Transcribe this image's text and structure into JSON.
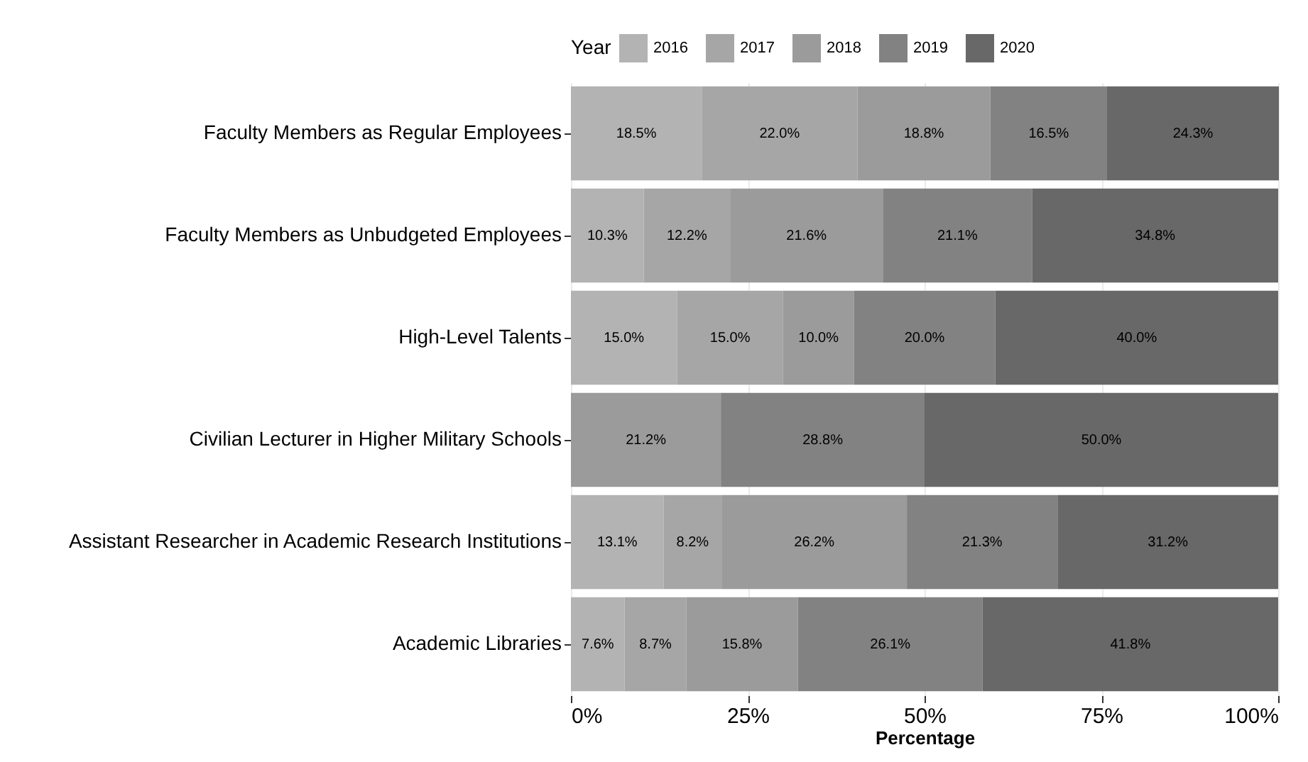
{
  "chart_data": {
    "type": "bar",
    "orientation": "horizontal",
    "stacked": true,
    "xlabel": "Percentage",
    "legend_title": "Year",
    "legend": "top",
    "grid": "x",
    "categories": [
      "Faculty Members as Regular Employees",
      "Faculty Members as Unbudgeted Employees",
      "High-Level Talents",
      "Civilian Lecturer in Higher Military Schools",
      "Assistant Researcher in Academic Research Institutions",
      "Academic Libraries"
    ],
    "xlim": [
      0,
      100
    ],
    "xticks": [
      {
        "value": 0,
        "label": "0%"
      },
      {
        "value": 25,
        "label": "25%"
      },
      {
        "value": 50,
        "label": "50%"
      },
      {
        "value": 75,
        "label": "75%"
      },
      {
        "value": 100,
        "label": "100%"
      }
    ],
    "series": [
      {
        "name": "2016",
        "color": "#b3b3b3",
        "values": [
          18.5,
          10.3,
          15.0,
          null,
          13.1,
          7.6
        ],
        "value_labels": [
          "18.5%",
          "10.3%",
          "15.0%",
          null,
          "13.1%",
          "7.6%"
        ]
      },
      {
        "name": "2017",
        "color": "#a6a6a6",
        "values": [
          22.0,
          12.2,
          15.0,
          null,
          8.2,
          8.7
        ],
        "value_labels": [
          "22.0%",
          "12.2%",
          "15.0%",
          null,
          "8.2%",
          "8.7%"
        ]
      },
      {
        "name": "2018",
        "color": "#9b9b9b",
        "values": [
          18.8,
          21.6,
          10.0,
          21.2,
          26.2,
          15.8
        ],
        "value_labels": [
          "18.8%",
          "21.6%",
          "10.0%",
          "21.2%",
          "26.2%",
          "15.8%"
        ]
      },
      {
        "name": "2019",
        "color": "#828282",
        "values": [
          16.5,
          21.1,
          20.0,
          28.8,
          21.3,
          26.1
        ],
        "value_labels": [
          "16.5%",
          "21.1%",
          "20.0%",
          "28.8%",
          "21.3%",
          "26.1%"
        ]
      },
      {
        "name": "2020",
        "color": "#686868",
        "values": [
          24.3,
          34.8,
          40.0,
          50.0,
          31.2,
          41.8
        ],
        "value_labels": [
          "24.3%",
          "34.8%",
          "40.0%",
          "50.0%",
          "31.2%",
          "41.8%"
        ]
      }
    ]
  }
}
